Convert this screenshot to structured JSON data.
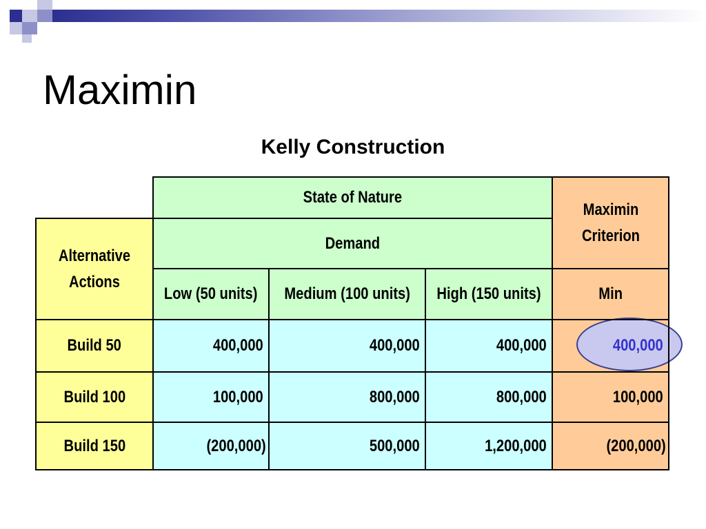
{
  "slide": {
    "title": "Maximin",
    "caption": "Kelly Construction"
  },
  "colors": {
    "header_green": "#ccffcc",
    "alt_yellow": "#ffff99",
    "data_cyan": "#ccffff",
    "criterion_orange": "#ffcc99",
    "highlight_text": "#3333cc",
    "highlight_fill": "#c9c9f0"
  },
  "table": {
    "state_of_nature": "State of Nature",
    "demand": "Demand",
    "alternative_actions": "Alternative Actions",
    "criterion_header": "Maximin Criterion",
    "columns": [
      "Low (50 units)",
      "Medium (100 units)",
      "High (150 units)",
      "Min"
    ],
    "rows": [
      {
        "action": "Build 50",
        "low": "400,000",
        "medium": "400,000",
        "high": "400,000",
        "min": "400,000"
      },
      {
        "action": "Build 100",
        "low": "100,000",
        "medium": "800,000",
        "high": "800,000",
        "min": "100,000"
      },
      {
        "action": "Build 150",
        "low": "(200,000)",
        "medium": "500,000",
        "high": "1,200,000",
        "min": "(200,000)"
      }
    ]
  }
}
